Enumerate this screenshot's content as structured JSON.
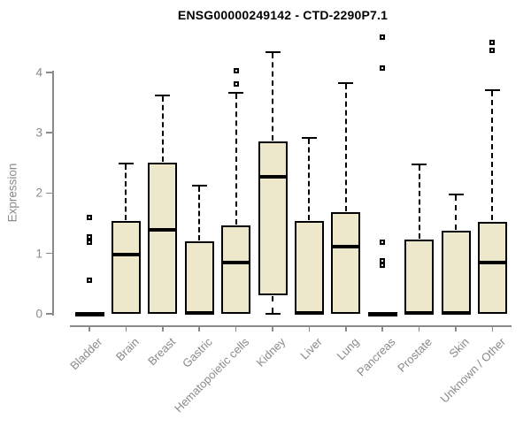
{
  "chart_data": {
    "type": "boxplot",
    "title": "ENSG00000249142 - CTD-2290P7.1",
    "xlabel": "",
    "ylabel": "Expression",
    "ylim": [
      0,
      4.6
    ],
    "yticks": [
      0,
      1,
      2,
      3,
      4
    ],
    "grid": false,
    "categories": [
      "Bladder",
      "Brain",
      "Breast",
      "Gastric",
      "Hematopoietic cells",
      "Kidney",
      "Liver",
      "Lung",
      "Pancreas",
      "Prostate",
      "Skin",
      "Unknown / Other"
    ],
    "boxes": [
      {
        "category": "Bladder",
        "whisker_low": 0,
        "q1": 0,
        "median": 0,
        "q3": 0,
        "whisker_high": 0,
        "outliers": [
          0.56,
          1.19,
          1.28,
          1.6
        ]
      },
      {
        "category": "Brain",
        "whisker_low": 0,
        "q1": 0,
        "median": 0.98,
        "q3": 1.54,
        "whisker_high": 2.49,
        "outliers": []
      },
      {
        "category": "Breast",
        "whisker_low": 0,
        "q1": 0,
        "median": 1.39,
        "q3": 2.51,
        "whisker_high": 3.61,
        "outliers": []
      },
      {
        "category": "Gastric",
        "whisker_low": 0,
        "q1": 0,
        "median": 0.02,
        "q3": 1.2,
        "whisker_high": 2.12,
        "outliers": []
      },
      {
        "category": "Hematopoietic cells",
        "whisker_low": 0,
        "q1": 0,
        "median": 0.85,
        "q3": 1.47,
        "whisker_high": 3.66,
        "outliers": [
          3.8,
          4.03
        ]
      },
      {
        "category": "Kidney",
        "whisker_low": 0,
        "q1": 0.31,
        "median": 2.27,
        "q3": 2.85,
        "whisker_high": 4.33,
        "outliers": []
      },
      {
        "category": "Liver",
        "whisker_low": 0,
        "q1": 0,
        "median": 0.02,
        "q3": 1.54,
        "whisker_high": 2.91,
        "outliers": []
      },
      {
        "category": "Lung",
        "whisker_low": 0,
        "q1": 0,
        "median": 1.12,
        "q3": 1.69,
        "whisker_high": 3.82,
        "outliers": []
      },
      {
        "category": "Pancreas",
        "whisker_low": 0,
        "q1": 0,
        "median": 0,
        "q3": 0,
        "whisker_high": 0,
        "outliers": [
          0.8,
          0.88,
          1.18,
          4.07,
          4.58
        ]
      },
      {
        "category": "Prostate",
        "whisker_low": 0,
        "q1": 0,
        "median": 0.02,
        "q3": 1.23,
        "whisker_high": 2.47,
        "outliers": []
      },
      {
        "category": "Skin",
        "whisker_low": 0,
        "q1": 0,
        "median": 0.02,
        "q3": 1.38,
        "whisker_high": 1.97,
        "outliers": []
      },
      {
        "category": "Unknown / Other",
        "whisker_low": 0,
        "q1": 0,
        "median": 0.85,
        "q3": 1.53,
        "whisker_high": 3.71,
        "outliers": [
          4.37,
          4.49
        ]
      }
    ],
    "colors": {
      "box_fill": "#EDE7CC",
      "box_stroke": "#000000",
      "axis": "#8a8a8a",
      "tick_label": "#8a8a8a",
      "title": "#000000"
    },
    "legend": null
  }
}
